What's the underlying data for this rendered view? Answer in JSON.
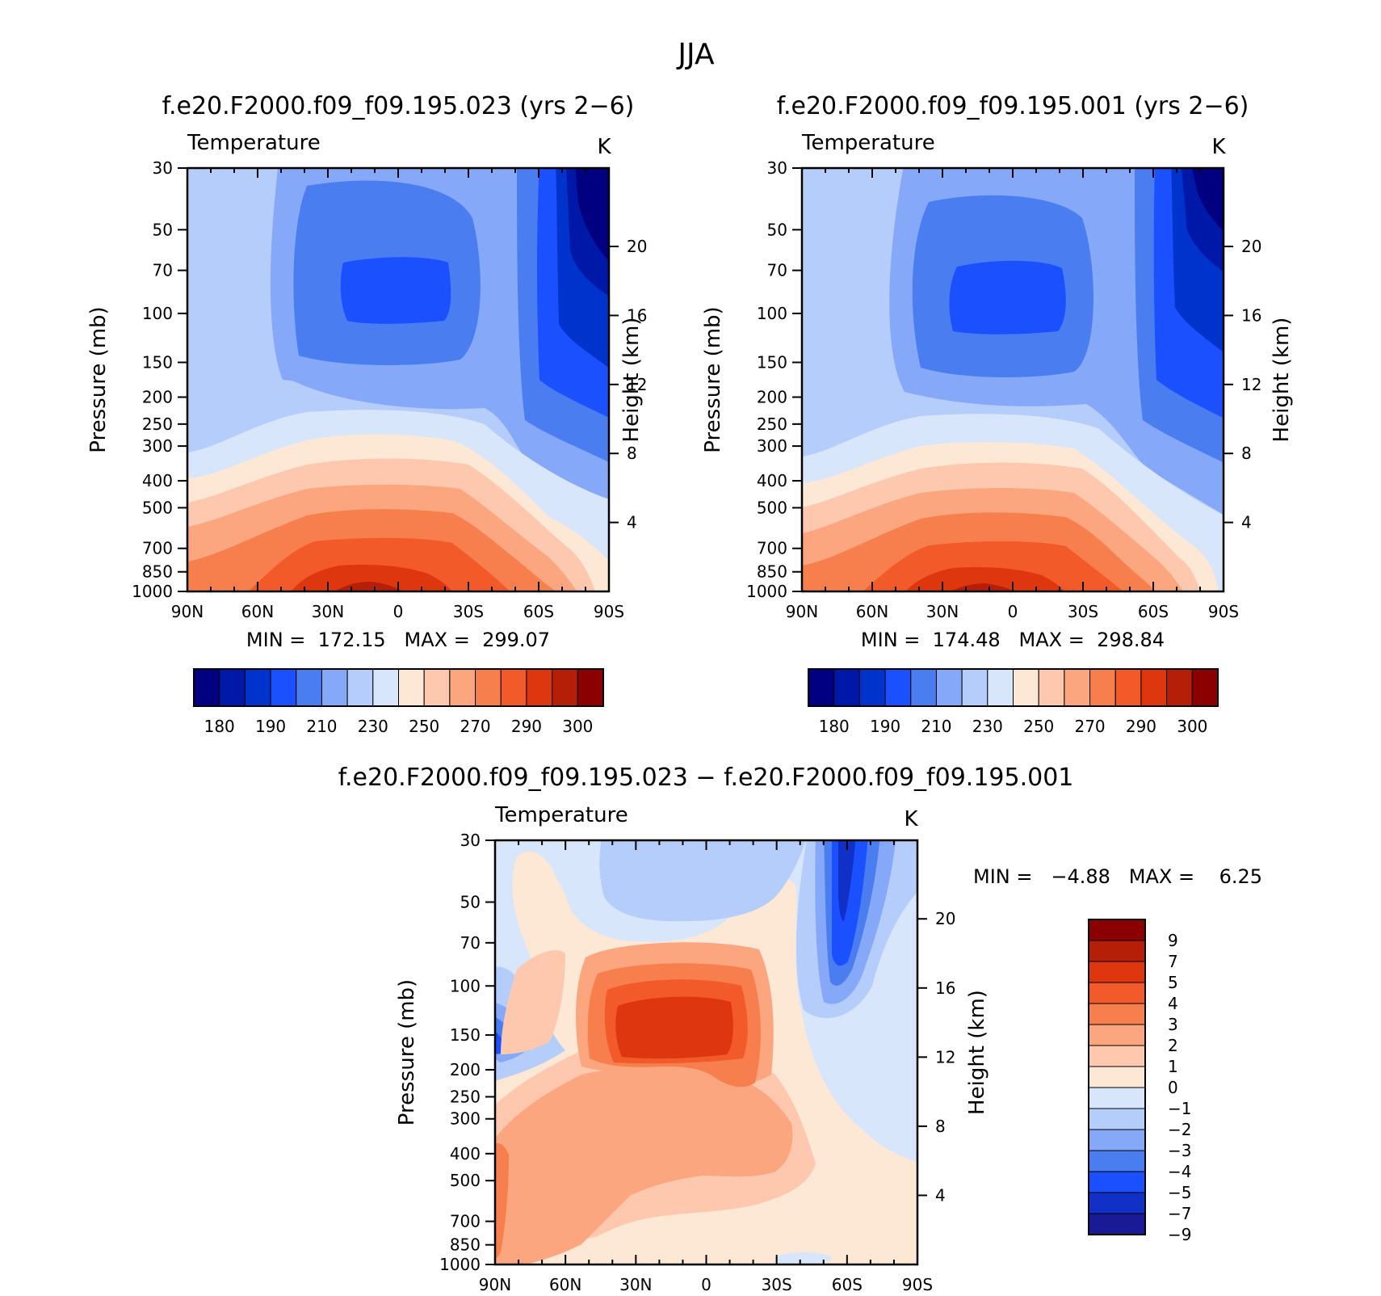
{
  "figure_title": "JJA",
  "colors": {
    "abs_fill": [
      "#000080",
      "#0018a8",
      "#0033cc",
      "#1a50ff",
      "#4a7ef0",
      "#85a8f8",
      "#b5cdfa",
      "#d8e6fb",
      "#fde8d6",
      "#fdc8ad",
      "#fba67e",
      "#f77f4e",
      "#f25a2a",
      "#de3710",
      "#b51f08",
      "#8b0000"
    ],
    "diff_fill": [
      "#1a1a96",
      "#1030c8",
      "#1a50ff",
      "#4a7ef0",
      "#85a8f8",
      "#b5cdfa",
      "#d8e6fb",
      "#fde8d6",
      "#fdc8ad",
      "#fba67e",
      "#f77f4e",
      "#f25a2a",
      "#de3710",
      "#b51f08",
      "#8b0000"
    ]
  },
  "chart_data": [
    {
      "type": "heatmap",
      "id": "left",
      "title": "f.e20.F2000.f09_f09.195.023 (yrs 2−6)",
      "subtitle": "Temperature",
      "units": "K",
      "ylabel": "Pressure (mb)",
      "ylabel_right": "Height (km)",
      "x_ticks": [
        "90N",
        "60N",
        "30N",
        "0",
        "30S",
        "60S",
        "90S"
      ],
      "y_ticks": [
        "30",
        "50",
        "70",
        "100",
        "150",
        "200",
        "250",
        "300",
        "400",
        "500",
        "700",
        "850",
        "1000"
      ],
      "y_ticks_right": [
        "20",
        "16",
        "12",
        "8",
        "4"
      ],
      "min_max_text": "MIN =  172.15   MAX =  299.07",
      "colorbar_labels": [
        "180",
        "190",
        "210",
        "230",
        "250",
        "270",
        "290",
        "300"
      ],
      "color_levels": [
        180,
        185,
        190,
        200,
        210,
        220,
        230,
        240,
        250,
        260,
        270,
        280,
        290,
        295,
        300
      ]
    },
    {
      "type": "heatmap",
      "id": "right",
      "title": "f.e20.F2000.f09_f09.195.001 (yrs 2−6)",
      "subtitle": "Temperature",
      "units": "K",
      "ylabel": "Pressure (mb)",
      "ylabel_right": "Height (km)",
      "x_ticks": [
        "90N",
        "60N",
        "30N",
        "0",
        "30S",
        "60S",
        "90S"
      ],
      "y_ticks": [
        "30",
        "50",
        "70",
        "100",
        "150",
        "200",
        "250",
        "300",
        "400",
        "500",
        "700",
        "850",
        "1000"
      ],
      "y_ticks_right": [
        "20",
        "16",
        "12",
        "8",
        "4"
      ],
      "min_max_text": "MIN =  174.48   MAX =  298.84",
      "colorbar_labels": [
        "180",
        "190",
        "210",
        "230",
        "250",
        "270",
        "290",
        "300"
      ],
      "color_levels": [
        180,
        185,
        190,
        200,
        210,
        220,
        230,
        240,
        250,
        260,
        270,
        280,
        290,
        295,
        300
      ]
    },
    {
      "type": "heatmap",
      "id": "diff",
      "title": "f.e20.F2000.f09_f09.195.023 − f.e20.F2000.f09_f09.195.001",
      "subtitle": "Temperature",
      "units": "K",
      "ylabel": "Pressure (mb)",
      "ylabel_right": "Height (km)",
      "x_ticks": [
        "90N",
        "60N",
        "30N",
        "0",
        "30S",
        "60S",
        "90S"
      ],
      "y_ticks": [
        "30",
        "50",
        "70",
        "100",
        "150",
        "200",
        "250",
        "300",
        "400",
        "500",
        "700",
        "850",
        "1000"
      ],
      "y_ticks_right": [
        "20",
        "16",
        "12",
        "8",
        "4"
      ],
      "min_max_text": "MIN =   −4.88   MAX =    6.25",
      "colorbar_labels": [
        "9",
        "7",
        "5",
        "4",
        "3",
        "2",
        "1",
        "0",
        "−1",
        "−2",
        "−3",
        "−4",
        "−5",
        "−7",
        "−9"
      ],
      "color_levels": [
        -9,
        -7,
        -5,
        -4,
        -3,
        -2,
        -1,
        0,
        1,
        2,
        3,
        4,
        5,
        7,
        9
      ]
    }
  ]
}
